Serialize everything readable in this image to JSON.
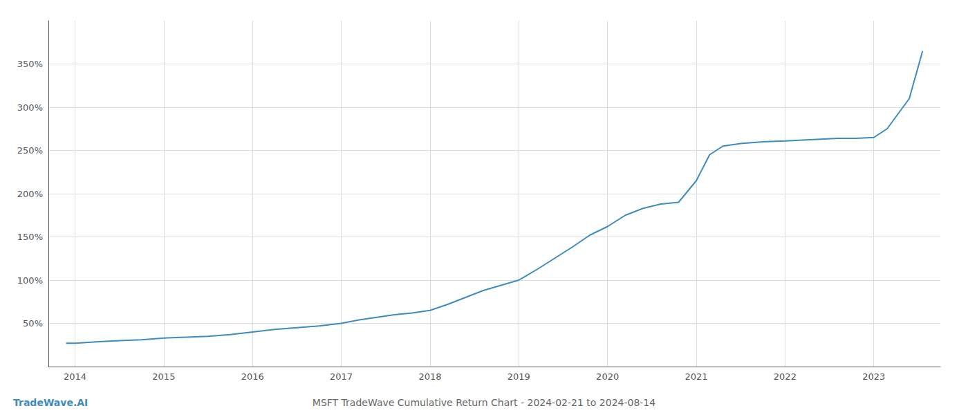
{
  "chart_data": {
    "type": "line",
    "title": "MSFT TradeWave Cumulative Return Chart - 2024-02-21 to 2024-08-14",
    "annotations": [
      "TradeWave.AI"
    ],
    "color": "#3d8bbf",
    "x": [
      2013.9,
      2014.0,
      2014.15,
      2014.3,
      2014.5,
      2014.75,
      2015.0,
      2015.25,
      2015.5,
      2015.75,
      2016.0,
      2016.25,
      2016.5,
      2016.75,
      2017.0,
      2017.2,
      2017.4,
      2017.6,
      2017.8,
      2018.0,
      2018.2,
      2018.4,
      2018.6,
      2018.8,
      2019.0,
      2019.2,
      2019.4,
      2019.6,
      2019.8,
      2020.0,
      2020.2,
      2020.4,
      2020.6,
      2020.8,
      2021.0,
      2021.15,
      2021.3,
      2021.5,
      2021.75,
      2022.0,
      2022.2,
      2022.4,
      2022.6,
      2022.8,
      2023.0,
      2023.15,
      2023.4,
      2023.55
    ],
    "values": [
      27,
      27,
      28,
      29,
      30,
      31,
      33,
      34,
      35,
      37,
      40,
      43,
      45,
      47,
      50,
      54,
      57,
      60,
      62,
      65,
      72,
      80,
      88,
      94,
      100,
      112,
      125,
      138,
      152,
      162,
      175,
      183,
      188,
      190,
      215,
      245,
      255,
      258,
      260,
      261,
      262,
      263,
      264,
      264,
      265,
      275,
      310,
      365
    ],
    "xlim": [
      2013.7,
      2023.75
    ],
    "ylim": [
      0,
      400
    ],
    "xticks": [
      2014,
      2015,
      2016,
      2017,
      2018,
      2019,
      2020,
      2021,
      2022,
      2023
    ],
    "yticks": [
      {
        "value": 50,
        "label": "50%"
      },
      {
        "value": 100,
        "label": "100%"
      },
      {
        "value": 150,
        "label": "150%"
      },
      {
        "value": 200,
        "label": "200%"
      },
      {
        "value": 250,
        "label": "250%"
      },
      {
        "value": 300,
        "label": "300%"
      },
      {
        "value": 350,
        "label": "350%"
      }
    ],
    "grid": true
  }
}
